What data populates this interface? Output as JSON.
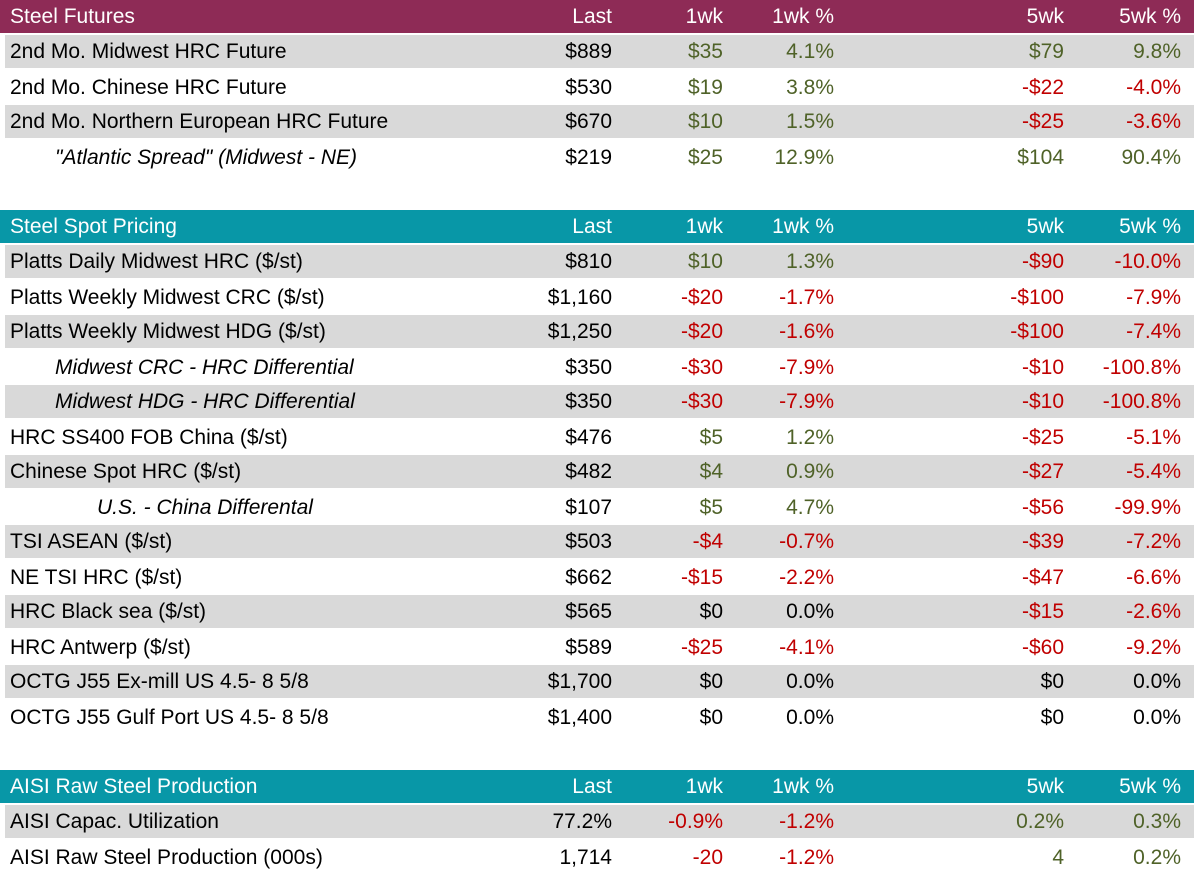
{
  "colors": {
    "futures_header_bg": "#8E2B56",
    "spot_header_bg": "#0897A7",
    "header_text": "#FFFFFF",
    "row_stripe": "#D9D9D9",
    "row_plain": "#FFFFFF",
    "positive_text": "#4F6228",
    "negative_text": "#C00000",
    "neutral_text": "#000000"
  },
  "chart_data": [
    {
      "type": "table",
      "title": "Steel Futures",
      "theme": "maroon",
      "gap_after": true,
      "columns": [
        "Last",
        "1wk",
        "1wk %",
        "5wk",
        "5wk %"
      ],
      "rows": [
        {
          "label": "2nd Mo. Midwest HRC Future",
          "indent": 0,
          "cells": [
            {
              "v": "$889",
              "c": "neu"
            },
            {
              "v": "$35",
              "c": "pos"
            },
            {
              "v": "4.1%",
              "c": "pos"
            },
            {
              "v": "$79",
              "c": "pos"
            },
            {
              "v": "9.8%",
              "c": "pos"
            }
          ]
        },
        {
          "label": "2nd Mo. Chinese HRC Future",
          "indent": 0,
          "cells": [
            {
              "v": "$530",
              "c": "neu"
            },
            {
              "v": "$19",
              "c": "pos"
            },
            {
              "v": "3.8%",
              "c": "pos"
            },
            {
              "v": "-$22",
              "c": "neg"
            },
            {
              "v": "-4.0%",
              "c": "neg"
            }
          ]
        },
        {
          "label": "2nd Mo. Northern European HRC Future",
          "indent": 0,
          "cells": [
            {
              "v": "$670",
              "c": "neu"
            },
            {
              "v": "$10",
              "c": "pos"
            },
            {
              "v": "1.5%",
              "c": "pos"
            },
            {
              "v": "-$25",
              "c": "neg"
            },
            {
              "v": "-3.6%",
              "c": "neg"
            }
          ]
        },
        {
          "label": "\"Atlantic Spread\" (Midwest - NE)",
          "indent": 1,
          "cells": [
            {
              "v": "$219",
              "c": "neu"
            },
            {
              "v": "$25",
              "c": "pos"
            },
            {
              "v": "12.9%",
              "c": "pos"
            },
            {
              "v": "$104",
              "c": "pos"
            },
            {
              "v": "90.4%",
              "c": "pos"
            }
          ]
        }
      ]
    },
    {
      "type": "table",
      "title": "Steel Spot Pricing",
      "theme": "teal",
      "gap_after": true,
      "columns": [
        "Last",
        "1wk",
        "1wk %",
        "5wk",
        "5wk %"
      ],
      "rows": [
        {
          "label": "Platts Daily Midwest HRC ($/st)",
          "indent": 0,
          "cells": [
            {
              "v": "$810",
              "c": "neu"
            },
            {
              "v": "$10",
              "c": "pos"
            },
            {
              "v": "1.3%",
              "c": "pos"
            },
            {
              "v": "-$90",
              "c": "neg"
            },
            {
              "v": "-10.0%",
              "c": "neg"
            }
          ]
        },
        {
          "label": "Platts Weekly Midwest CRC ($/st)",
          "indent": 0,
          "cells": [
            {
              "v": "$1,160",
              "c": "neu"
            },
            {
              "v": "-$20",
              "c": "neg"
            },
            {
              "v": "-1.7%",
              "c": "neg"
            },
            {
              "v": "-$100",
              "c": "neg"
            },
            {
              "v": "-7.9%",
              "c": "neg"
            }
          ]
        },
        {
          "label": "Platts Weekly Midwest HDG ($/st)",
          "indent": 0,
          "cells": [
            {
              "v": "$1,250",
              "c": "neu"
            },
            {
              "v": "-$20",
              "c": "neg"
            },
            {
              "v": "-1.6%",
              "c": "neg"
            },
            {
              "v": "-$100",
              "c": "neg"
            },
            {
              "v": "-7.4%",
              "c": "neg"
            }
          ]
        },
        {
          "label": "Midwest CRC - HRC Differential",
          "indent": 1,
          "cells": [
            {
              "v": "$350",
              "c": "neu"
            },
            {
              "v": "-$30",
              "c": "neg"
            },
            {
              "v": "-7.9%",
              "c": "neg"
            },
            {
              "v": "-$10",
              "c": "neg"
            },
            {
              "v": "-100.8%",
              "c": "neg"
            }
          ]
        },
        {
          "label": "Midwest HDG - HRC Differential",
          "indent": 1,
          "cells": [
            {
              "v": "$350",
              "c": "neu"
            },
            {
              "v": "-$30",
              "c": "neg"
            },
            {
              "v": "-7.9%",
              "c": "neg"
            },
            {
              "v": "-$10",
              "c": "neg"
            },
            {
              "v": "-100.8%",
              "c": "neg"
            }
          ]
        },
        {
          "label": "HRC SS400 FOB China ($/st)",
          "indent": 0,
          "cells": [
            {
              "v": "$476",
              "c": "neu"
            },
            {
              "v": "$5",
              "c": "pos"
            },
            {
              "v": "1.2%",
              "c": "pos"
            },
            {
              "v": "-$25",
              "c": "neg"
            },
            {
              "v": "-5.1%",
              "c": "neg"
            }
          ]
        },
        {
          "label": "Chinese Spot HRC ($/st)",
          "indent": 0,
          "cells": [
            {
              "v": "$482",
              "c": "neu"
            },
            {
              "v": "$4",
              "c": "pos"
            },
            {
              "v": "0.9%",
              "c": "pos"
            },
            {
              "v": "-$27",
              "c": "neg"
            },
            {
              "v": "-5.4%",
              "c": "neg"
            }
          ]
        },
        {
          "label": "U.S. - China Differental",
          "indent": 2,
          "cells": [
            {
              "v": "$107",
              "c": "neu"
            },
            {
              "v": "$5",
              "c": "pos"
            },
            {
              "v": "4.7%",
              "c": "pos"
            },
            {
              "v": "-$56",
              "c": "neg"
            },
            {
              "v": "-99.9%",
              "c": "neg"
            }
          ]
        },
        {
          "label": "TSI ASEAN ($/st)",
          "indent": 0,
          "cells": [
            {
              "v": "$503",
              "c": "neu"
            },
            {
              "v": "-$4",
              "c": "neg"
            },
            {
              "v": "-0.7%",
              "c": "neg"
            },
            {
              "v": "-$39",
              "c": "neg"
            },
            {
              "v": "-7.2%",
              "c": "neg"
            }
          ]
        },
        {
          "label": "NE TSI HRC ($/st)",
          "indent": 0,
          "cells": [
            {
              "v": "$662",
              "c": "neu"
            },
            {
              "v": "-$15",
              "c": "neg"
            },
            {
              "v": "-2.2%",
              "c": "neg"
            },
            {
              "v": "-$47",
              "c": "neg"
            },
            {
              "v": "-6.6%",
              "c": "neg"
            }
          ]
        },
        {
          "label": "HRC Black sea ($/st)",
          "indent": 0,
          "cells": [
            {
              "v": "$565",
              "c": "neu"
            },
            {
              "v": "$0",
              "c": "neu"
            },
            {
              "v": "0.0%",
              "c": "neu"
            },
            {
              "v": "-$15",
              "c": "neg"
            },
            {
              "v": "-2.6%",
              "c": "neg"
            }
          ]
        },
        {
          "label": "HRC Antwerp ($/st)",
          "indent": 0,
          "cells": [
            {
              "v": "$589",
              "c": "neu"
            },
            {
              "v": "-$25",
              "c": "neg"
            },
            {
              "v": "-4.1%",
              "c": "neg"
            },
            {
              "v": "-$60",
              "c": "neg"
            },
            {
              "v": "-9.2%",
              "c": "neg"
            }
          ]
        },
        {
          "label": "OCTG J55 Ex-mill US 4.5- 8 5/8",
          "indent": 0,
          "cells": [
            {
              "v": "$1,700",
              "c": "neu"
            },
            {
              "v": "$0",
              "c": "neu"
            },
            {
              "v": "0.0%",
              "c": "neu"
            },
            {
              "v": "$0",
              "c": "neu"
            },
            {
              "v": "0.0%",
              "c": "neu"
            }
          ]
        },
        {
          "label": "OCTG J55 Gulf Port US 4.5- 8 5/8",
          "indent": 0,
          "cells": [
            {
              "v": "$1,400",
              "c": "neu"
            },
            {
              "v": "$0",
              "c": "neu"
            },
            {
              "v": "0.0%",
              "c": "neu"
            },
            {
              "v": "$0",
              "c": "neu"
            },
            {
              "v": "0.0%",
              "c": "neu"
            }
          ]
        }
      ]
    },
    {
      "type": "table",
      "title": "AISI Raw Steel Production",
      "theme": "teal",
      "gap_after": false,
      "columns": [
        "Last",
        "1wk",
        "1wk %",
        "5wk",
        "5wk %"
      ],
      "rows": [
        {
          "label": "AISI Capac. Utilization",
          "indent": 0,
          "cells": [
            {
              "v": "77.2%",
              "c": "neu"
            },
            {
              "v": "-0.9%",
              "c": "neg"
            },
            {
              "v": "-1.2%",
              "c": "neg"
            },
            {
              "v": "0.2%",
              "c": "pos"
            },
            {
              "v": "0.3%",
              "c": "pos"
            }
          ]
        },
        {
          "label": "AISI Raw Steel Production (000s)",
          "indent": 0,
          "cells": [
            {
              "v": "1,714",
              "c": "neu"
            },
            {
              "v": "-20",
              "c": "neg"
            },
            {
              "v": "-1.2%",
              "c": "neg"
            },
            {
              "v": "4",
              "c": "pos"
            },
            {
              "v": "0.2%",
              "c": "pos"
            }
          ]
        }
      ]
    }
  ]
}
